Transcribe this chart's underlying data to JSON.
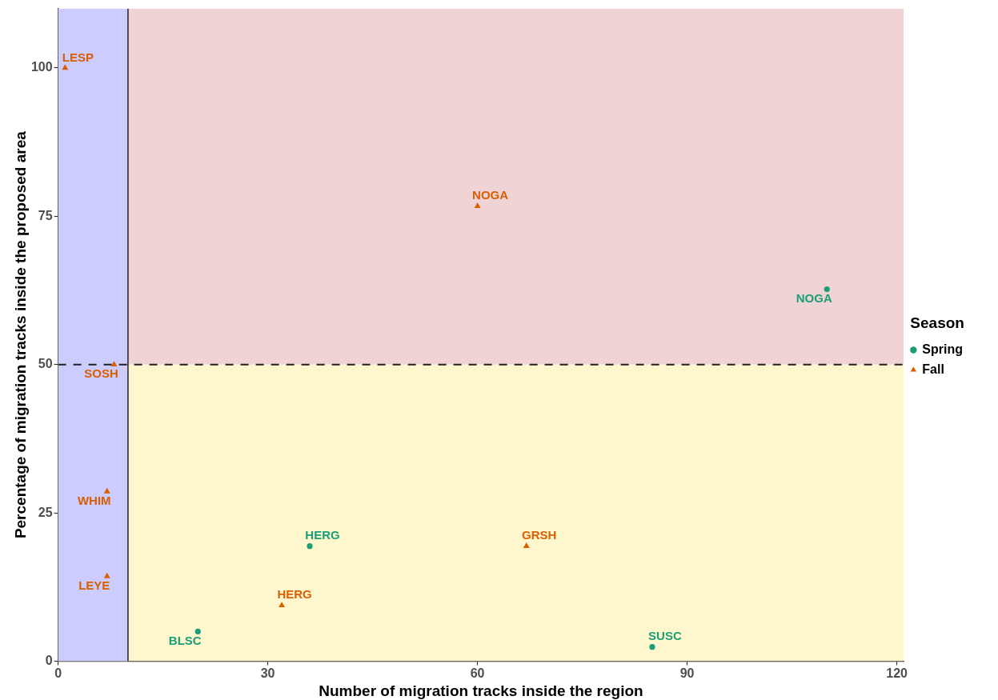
{
  "chart_data": {
    "type": "scatter",
    "xlabel": "Number of migration tracks inside the region",
    "ylabel": "Percentage of migration tracks inside the proposed area",
    "legend_title": "Season",
    "legend": "right",
    "xlim": [
      0,
      121
    ],
    "xticks": [
      0,
      30,
      60,
      90,
      120
    ],
    "ylim": [
      0,
      110
    ],
    "yticks": [
      0,
      25,
      50,
      75,
      100
    ],
    "series": [
      {
        "name": "Spring",
        "color": "#1b9e77",
        "marker": "circle",
        "x": [
          20,
          36,
          85,
          110
        ],
        "values": [
          5,
          19.4,
          2.4,
          62.7
        ]
      },
      {
        "name": "Fall",
        "color": "#d95f02",
        "marker": "triangle",
        "x": [
          1,
          8,
          7,
          7,
          32,
          60,
          67
        ],
        "values": [
          100,
          50,
          28.6,
          14.3,
          9.4,
          76.7,
          19.4
        ]
      }
    ],
    "bands": [
      {
        "axis": "y",
        "from": 50,
        "to": 110,
        "color": "#f0d3d4"
      },
      {
        "axis": "y",
        "from": 0,
        "to": 50,
        "color": "#fef6cc"
      },
      {
        "axis": "x",
        "from": 0,
        "to": 10,
        "color": "#ccccff"
      }
    ],
    "ref_lines": [
      {
        "axis": "x",
        "value": 10,
        "line_style": "solid",
        "color": "#231f26"
      },
      {
        "axis": "y",
        "value": 50,
        "line_style": "dashed",
        "color": "#231f26"
      }
    ],
    "annotations": [
      {
        "text": "BLSC",
        "x": 20,
        "y": 5
      },
      {
        "text": "HERG",
        "x": 36,
        "y": 19.4
      },
      {
        "text": "SUSC",
        "x": 85,
        "y": 2.4
      },
      {
        "text": "NOGA",
        "x": 110,
        "y": 62.7
      },
      {
        "text": "LESP",
        "x": 1,
        "y": 100
      },
      {
        "text": "SOSH",
        "x": 8,
        "y": 50
      },
      {
        "text": "WHIM",
        "x": 7,
        "y": 28.6
      },
      {
        "text": "LEYE",
        "x": 7,
        "y": 14.3
      },
      {
        "text": "HERG",
        "x": 32,
        "y": 9.4
      },
      {
        "text": "NOGA",
        "x": 60,
        "y": 76.7
      },
      {
        "text": "GRSH",
        "x": 67,
        "y": 19.4
      }
    ]
  }
}
